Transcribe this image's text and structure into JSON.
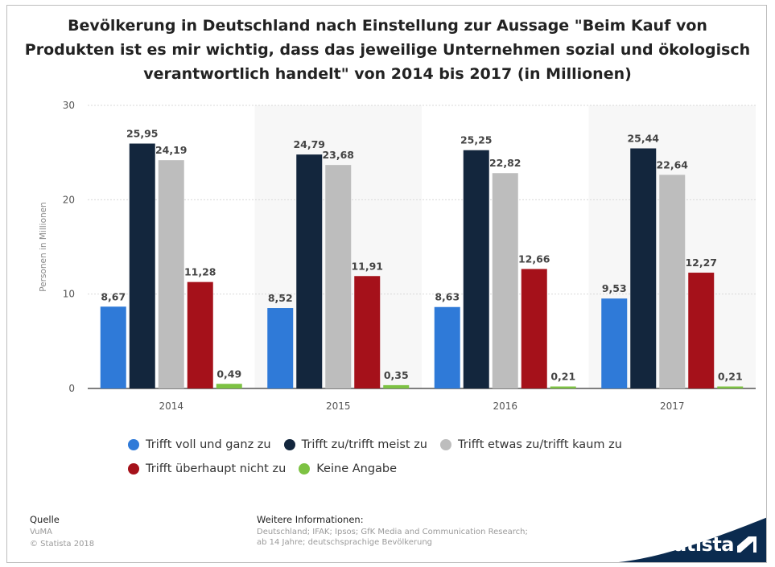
{
  "title": "Bevölkerung in Deutschland nach Einstellung zur Aussage \"Beim Kauf von Produkten ist es mir wichtig, dass das jeweilige Unternehmen sozial und ökologisch verantwortlich handelt\" von 2014 bis 2017 (in Millionen)",
  "chart_data": {
    "type": "bar",
    "categories": [
      "2014",
      "2015",
      "2016",
      "2017"
    ],
    "ylabel": "Personen in Millionen",
    "ylim": [
      0,
      30
    ],
    "yticks": [
      0,
      10,
      20,
      30
    ],
    "series": [
      {
        "name": "Trifft voll und ganz zu",
        "color": "#2f7ad8",
        "values": [
          8.67,
          8.52,
          8.63,
          9.53
        ],
        "labels": [
          "8,67",
          "8,52",
          "8,63",
          "9,53"
        ]
      },
      {
        "name": "Trifft zu/trifft meist zu",
        "color": "#13263d",
        "values": [
          25.95,
          24.79,
          25.25,
          25.44
        ],
        "labels": [
          "25,95",
          "24,79",
          "25,25",
          "25,44"
        ]
      },
      {
        "name": "Trifft etwas zu/trifft kaum zu",
        "color": "#bdbdbd",
        "values": [
          24.19,
          23.68,
          22.82,
          22.64
        ],
        "labels": [
          "24,19",
          "23,68",
          "22,82",
          "22,64"
        ]
      },
      {
        "name": "Trifft überhaupt nicht zu",
        "color": "#a5111a",
        "values": [
          11.28,
          11.91,
          12.66,
          12.27
        ],
        "labels": [
          "11,28",
          "11,91",
          "12,66",
          "12,27"
        ]
      },
      {
        "name": "Keine Angabe",
        "color": "#7dc243",
        "values": [
          0.49,
          0.35,
          0.21,
          0.21
        ],
        "labels": [
          "0,49",
          "0,35",
          "0,21",
          "0,21"
        ]
      }
    ],
    "grid": true,
    "legend_position": "bottom"
  },
  "footer": {
    "source_label": "Quelle",
    "source_lines": [
      "VuMA",
      "© Statista 2018"
    ],
    "info_label": "Weitere Informationen:",
    "info_lines": [
      "Deutschland; IFAK; Ipsos; GfK Media and Communication Research;",
      "ab 14 Jahre; deutschsprachige Bevölkerung"
    ]
  },
  "brand": {
    "name": "statista",
    "color": "#0b2b4f"
  }
}
